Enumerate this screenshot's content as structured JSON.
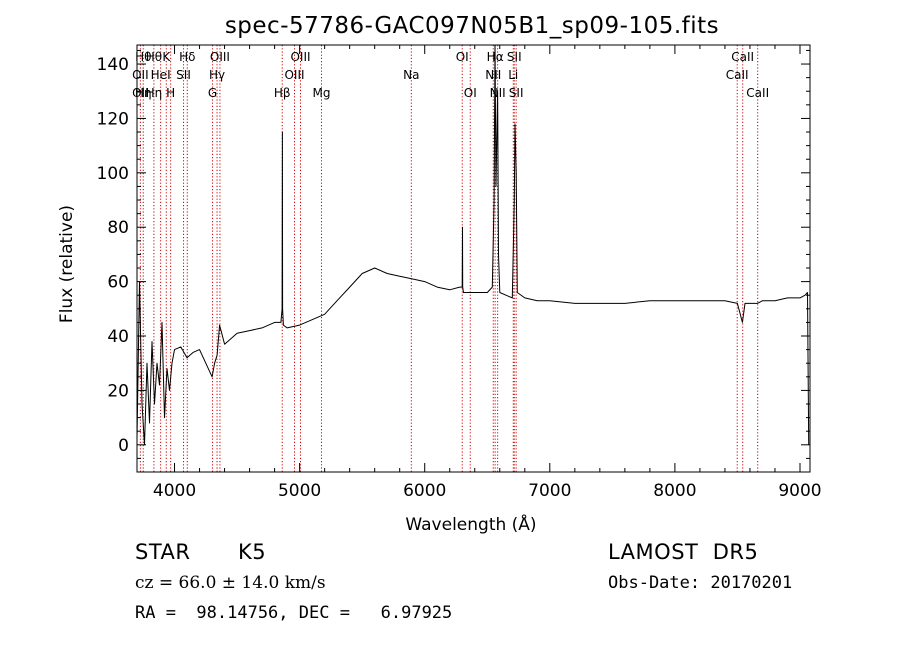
{
  "chart_data": {
    "type": "line",
    "title": "spec-57786-GAC097N05B1_sp09-105.fits",
    "xlabel": "Wavelength (Å)",
    "ylabel": "Flux (relative)",
    "xlim": [
      3700,
      9080
    ],
    "ylim": [
      -10,
      147
    ],
    "xticks": [
      4000,
      5000,
      6000,
      7000,
      8000,
      9000
    ],
    "yticks": [
      0,
      20,
      40,
      60,
      80,
      100,
      120,
      140
    ],
    "grid": false,
    "line_color": "#000000",
    "marker_color": "#cc0000",
    "series": [
      {
        "x": [
          3700,
          3720,
          3740,
          3760,
          3780,
          3800,
          3820,
          3840,
          3860,
          3880,
          3900,
          3920,
          3940,
          3960,
          3980,
          4000,
          4050,
          4100,
          4150,
          4200,
          4250,
          4300,
          4320,
          4340,
          4360,
          4400,
          4500,
          4600,
          4700,
          4800,
          4850,
          4860,
          4862,
          4864,
          4870,
          4900,
          5000,
          5100,
          5200,
          5300,
          5400,
          5500,
          5600,
          5700,
          5800,
          5900,
          6000,
          6100,
          6200,
          6280,
          6300,
          6302,
          6304,
          6310,
          6400,
          6500,
          6540,
          6555,
          6562,
          6570,
          6583,
          6590,
          6600,
          6650,
          6700,
          6716,
          6722,
          6731,
          6740,
          6800,
          6900,
          7000,
          7200,
          7400,
          7600,
          7800,
          8000,
          8200,
          8400,
          8500,
          8540,
          8560,
          8600,
          8660,
          8700,
          8800,
          8900,
          9000,
          9040,
          9060,
          9070
        ],
        "y": [
          2,
          60,
          15,
          0,
          30,
          8,
          38,
          15,
          30,
          22,
          45,
          10,
          28,
          20,
          30,
          35,
          36,
          32,
          34,
          35,
          30,
          25,
          30,
          33,
          44,
          37,
          41,
          42,
          43,
          45,
          45,
          50,
          115,
          50,
          44,
          43,
          44,
          46,
          48,
          53,
          58,
          63,
          65,
          63,
          62,
          61,
          60,
          58,
          57,
          58,
          58,
          80,
          58,
          56,
          56,
          56,
          58,
          90,
          147,
          95,
          130,
          70,
          56,
          55,
          54,
          90,
          118,
          100,
          56,
          54,
          53,
          53,
          52,
          52,
          52,
          53,
          53,
          53,
          53,
          52,
          45,
          52,
          52,
          52,
          53,
          53,
          54,
          54,
          55,
          56,
          0
        ]
      }
    ],
    "lines": [
      {
        "x": 3727,
        "rows": [
          null,
          "OII",
          "OII"
        ]
      },
      {
        "x": 3750,
        "rows": [
          "Hθ",
          "",
          "Hη"
        ]
      },
      {
        "x": 3835,
        "rows": [
          "Hθ",
          "",
          "Hη"
        ]
      },
      {
        "x": 3889,
        "rows": [
          "",
          "HeI",
          ""
        ]
      },
      {
        "x": 3934,
        "rows": [
          "K",
          "",
          ""
        ]
      },
      {
        "x": 3969,
        "rows": [
          "",
          "",
          "H"
        ]
      },
      {
        "x": 4072,
        "rows": [
          "",
          "SII",
          ""
        ]
      },
      {
        "x": 4102,
        "rows": [
          "Hδ",
          "",
          ""
        ]
      },
      {
        "x": 4304,
        "rows": [
          "",
          "",
          "G"
        ]
      },
      {
        "x": 4340,
        "rows": [
          "",
          "Hγ",
          ""
        ]
      },
      {
        "x": 4363,
        "rows": [
          "OIII",
          "",
          ""
        ]
      },
      {
        "x": 4861,
        "rows": [
          "",
          "",
          "Hβ"
        ]
      },
      {
        "x": 4959,
        "rows": [
          "",
          "OIII",
          ""
        ]
      },
      {
        "x": 5007,
        "rows": [
          "OIII",
          "",
          ""
        ]
      },
      {
        "x": 5175,
        "rows": [
          "",
          "",
          "Mg"
        ]
      },
      {
        "x": 5893,
        "rows": [
          "",
          "Na",
          ""
        ]
      },
      {
        "x": 6300,
        "rows": [
          "OI",
          "",
          ""
        ]
      },
      {
        "x": 6364,
        "rows": [
          "",
          "",
          "OI"
        ]
      },
      {
        "x": 6548,
        "rows": [
          "",
          "NII",
          ""
        ]
      },
      {
        "x": 6563,
        "rows": [
          "Hα",
          "",
          ""
        ]
      },
      {
        "x": 6583,
        "rows": [
          "",
          "",
          "NII"
        ]
      },
      {
        "x": 6708,
        "rows": [
          "",
          "Li",
          ""
        ]
      },
      {
        "x": 6716,
        "rows": [
          "SII",
          "",
          ""
        ]
      },
      {
        "x": 6731,
        "rows": [
          "",
          "",
          "SII"
        ]
      },
      {
        "x": 8498,
        "rows": [
          "",
          "CaII",
          ""
        ]
      },
      {
        "x": 8542,
        "rows": [
          "CaII",
          "",
          ""
        ]
      },
      {
        "x": 8662,
        "rows": [
          "",
          "",
          "CaII"
        ]
      }
    ]
  },
  "info": {
    "object_class": "STAR",
    "subclass": "K5",
    "survey": "LAMOST  DR5",
    "cz": "cz = 66.0 ± 14.0 km/s",
    "obs_date": "Obs-Date: 20170201",
    "coords": "RA =  98.14756, DEC =   6.97925"
  }
}
